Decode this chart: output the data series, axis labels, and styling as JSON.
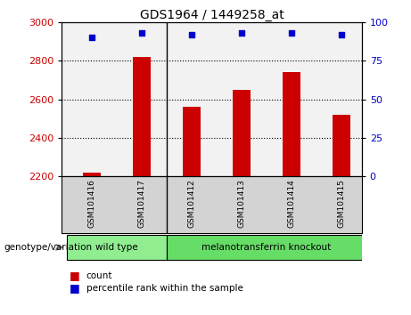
{
  "title": "GDS1964 / 1449258_at",
  "samples": [
    "GSM101416",
    "GSM101417",
    "GSM101412",
    "GSM101413",
    "GSM101414",
    "GSM101415"
  ],
  "bar_values": [
    2220,
    2820,
    2560,
    2650,
    2740,
    2520
  ],
  "percentile_values": [
    90,
    93,
    92,
    93,
    93,
    92
  ],
  "ylim_left": [
    2200,
    3000
  ],
  "ylim_right": [
    0,
    100
  ],
  "yticks_left": [
    2200,
    2400,
    2600,
    2800,
    3000
  ],
  "yticks_right": [
    0,
    25,
    50,
    75,
    100
  ],
  "bar_color": "#cc0000",
  "dot_color": "#0000cc",
  "groups": [
    {
      "label": "wild type",
      "start": 0,
      "end": 1,
      "color": "#90ee90"
    },
    {
      "label": "melanotransferrin knockout",
      "start": 2,
      "end": 5,
      "color": "#66dd66"
    }
  ],
  "genotype_label": "genotype/variation",
  "legend_count": "count",
  "legend_percentile": "percentile rank within the sample",
  "tick_label_color_left": "#cc0000",
  "tick_label_color_right": "#0000cc",
  "bg_color": "#ffffff",
  "plot_bg_color": "#f2f2f2",
  "label_bg_color": "#d3d3d3",
  "separator_x": 1.5,
  "xlim": [
    -0.6,
    5.4
  ],
  "bar_width": 0.35
}
